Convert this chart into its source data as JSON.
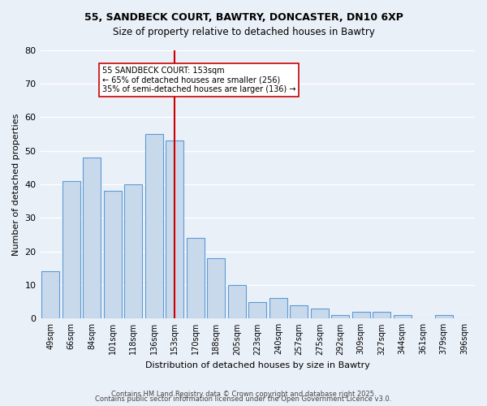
{
  "title_line1": "55, SANDBECK COURT, BAWTRY, DONCASTER, DN10 6XP",
  "title_line2": "Size of property relative to detached houses in Bawtry",
  "xlabel": "Distribution of detached houses by size in Bawtry",
  "ylabel": "Number of detached properties",
  "categories": [
    "49sqm",
    "66sqm",
    "84sqm",
    "101sqm",
    "118sqm",
    "136sqm",
    "153sqm",
    "170sqm",
    "188sqm",
    "205sqm",
    "223sqm",
    "240sqm",
    "257sqm",
    "275sqm",
    "292sqm",
    "309sqm",
    "327sqm",
    "344sqm",
    "361sqm",
    "379sqm",
    "396sqm"
  ],
  "values": [
    14,
    41,
    48,
    38,
    40,
    55,
    53,
    24,
    18,
    10,
    5,
    6,
    4,
    3,
    1,
    2,
    2,
    1,
    0,
    1,
    0
  ],
  "bar_color": "#c9d9ec",
  "bar_edge_color": "#5b9bd5",
  "red_line_index": 6,
  "red_line_value": 153,
  "annotation_text": "55 SANDBECK COURT: 153sqm\n← 65% of detached houses are smaller (256)\n35% of semi-detached houses are larger (136) →",
  "annotation_box_color": "#ffffff",
  "annotation_box_edge_color": "#cc0000",
  "ylim": [
    0,
    80
  ],
  "yticks": [
    0,
    10,
    20,
    30,
    40,
    50,
    60,
    70,
    80
  ],
  "background_color": "#eaf0f8",
  "grid_color": "#ffffff",
  "footer_line1": "Contains HM Land Registry data © Crown copyright and database right 2025.",
  "footer_line2": "Contains public sector information licensed under the Open Government Licence v3.0."
}
